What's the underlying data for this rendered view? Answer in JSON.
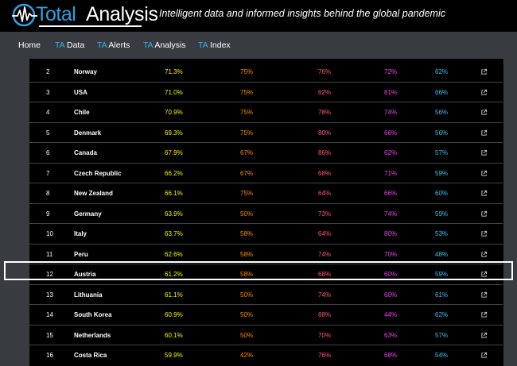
{
  "header": {
    "logo_total": "Total",
    "logo_analysis": "Analysis",
    "tagline": "Intelligent data and informed insights behind the global pandemic"
  },
  "nav": {
    "home": "Home",
    "ta_prefix": "TA",
    "data": "Data",
    "alerts": "Alerts",
    "analysis": "Analysis",
    "index": "Index"
  },
  "table": {
    "rows": [
      {
        "rank": "2",
        "country": "Norway",
        "score": "71.3%",
        "data": "75%",
        "alerts": "76%",
        "analysis": "72%",
        "index": "62%"
      },
      {
        "rank": "3",
        "country": "USA",
        "score": "71.0%",
        "data": "75%",
        "alerts": "62%",
        "analysis": "81%",
        "index": "66%"
      },
      {
        "rank": "4",
        "country": "Chile",
        "score": "70.9%",
        "data": "75%",
        "alerts": "78%",
        "analysis": "74%",
        "index": "56%"
      },
      {
        "rank": "5",
        "country": "Denmark",
        "score": "69.3%",
        "data": "75%",
        "alerts": "80%",
        "analysis": "66%",
        "index": "56%"
      },
      {
        "rank": "6",
        "country": "Canada",
        "score": "67.9%",
        "data": "67%",
        "alerts": "86%",
        "analysis": "62%",
        "index": "57%"
      },
      {
        "rank": "7",
        "country": "Czech Republic",
        "score": "66.2%",
        "data": "67%",
        "alerts": "68%",
        "analysis": "71%",
        "index": "59%"
      },
      {
        "rank": "8",
        "country": "New Zealand",
        "score": "66.1%",
        "data": "75%",
        "alerts": "64%",
        "analysis": "66%",
        "index": "60%"
      },
      {
        "rank": "9",
        "country": "Germany",
        "score": "63.9%",
        "data": "50%",
        "alerts": "73%",
        "analysis": "74%",
        "index": "59%"
      },
      {
        "rank": "10",
        "country": "Italy",
        "score": "63.7%",
        "data": "58%",
        "alerts": "64%",
        "analysis": "80%",
        "index": "53%"
      },
      {
        "rank": "11",
        "country": "Peru",
        "score": "62.6%",
        "data": "58%",
        "alerts": "74%",
        "analysis": "70%",
        "index": "48%"
      },
      {
        "rank": "12",
        "country": "Austria",
        "score": "61.2%",
        "data": "58%",
        "alerts": "68%",
        "analysis": "60%",
        "index": "59%"
      },
      {
        "rank": "13",
        "country": "Lithuania",
        "score": "61.1%",
        "data": "50%",
        "alerts": "74%",
        "analysis": "60%",
        "index": "61%"
      },
      {
        "rank": "14",
        "country": "South Korea",
        "score": "60.9%",
        "data": "50%",
        "alerts": "88%",
        "analysis": "44%",
        "index": "62%"
      },
      {
        "rank": "15",
        "country": "Netherlands",
        "score": "60.1%",
        "data": "50%",
        "alerts": "70%",
        "analysis": "63%",
        "index": "57%"
      },
      {
        "rank": "16",
        "country": "Costa Rica",
        "score": "59.9%",
        "data": "42%",
        "alerts": "76%",
        "analysis": "68%",
        "index": "54%"
      }
    ]
  },
  "colors": {
    "score": "#f5f500",
    "data": "#ff8c00",
    "alerts": "#ff5577",
    "analysis": "#ee44ee",
    "index": "#39c0ee",
    "brand": "#2f9fe0",
    "nav_bg": "#383c41"
  },
  "icons": {
    "logo": "waveform-circle-logo",
    "row_action": "external-link-icon"
  },
  "highlighted_row": "Austria"
}
